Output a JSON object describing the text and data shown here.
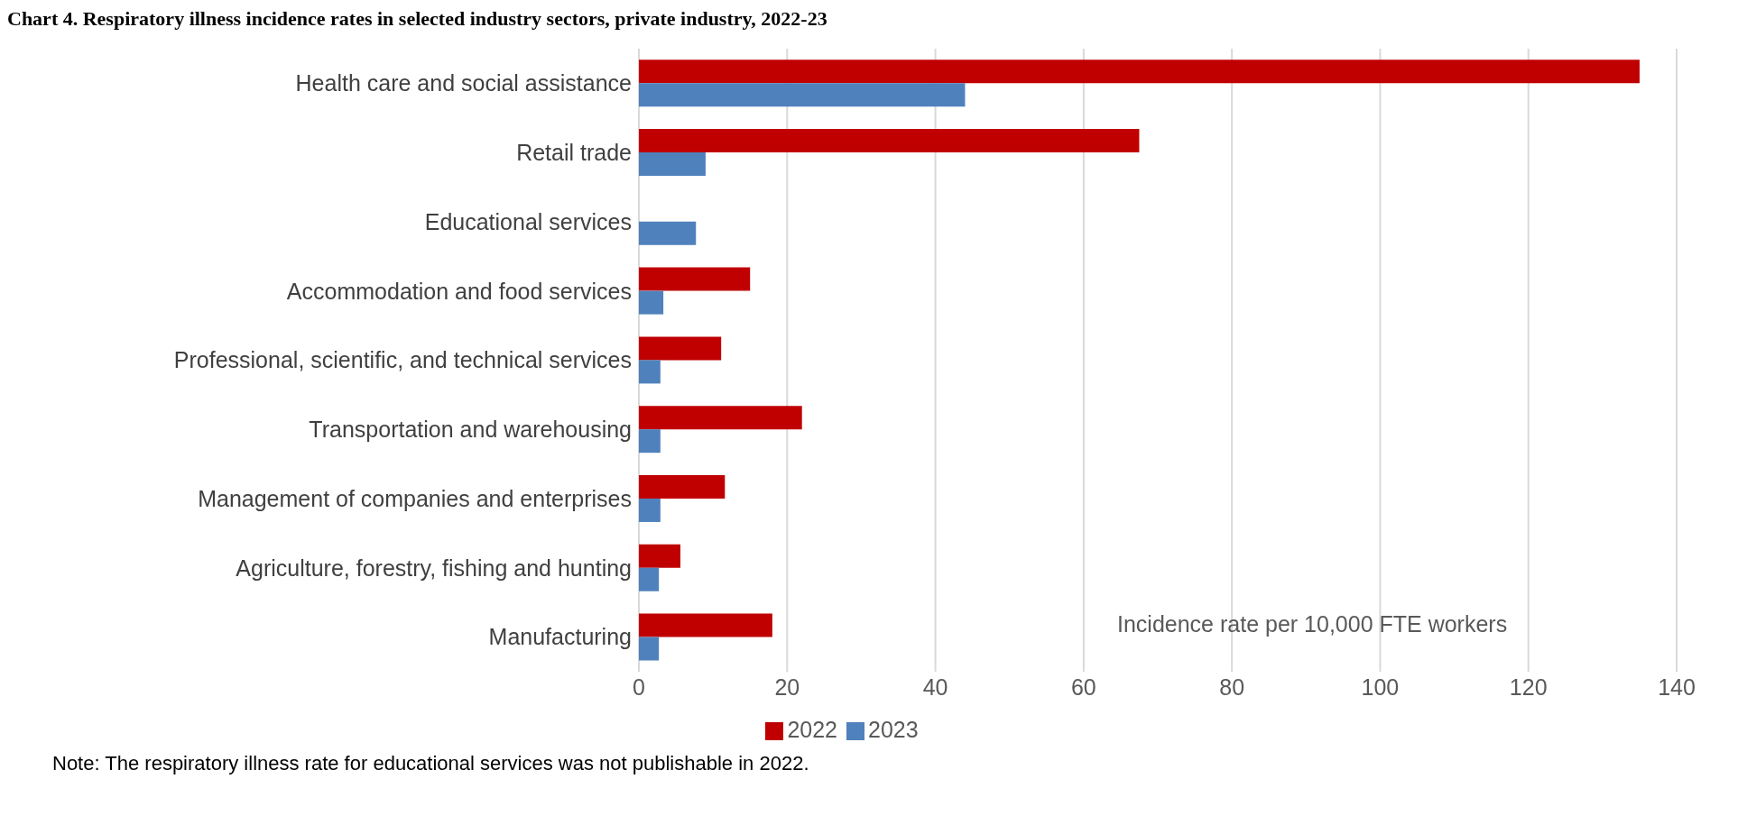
{
  "chart_data": {
    "type": "bar",
    "orientation": "horizontal",
    "title": "Chart 4. Respiratory illness incidence rates in selected industry sectors, private industry, 2022-23",
    "categories": [
      "Health care and social assistance",
      "Retail trade",
      "Educational services",
      "Accommodation and food services",
      "Professional, scientific, and technical services",
      "Transportation and warehousing",
      "Management of companies and enterprises",
      "Agriculture, forestry, fishing and hunting",
      "Manufacturing"
    ],
    "series": [
      {
        "name": "2022",
        "color": "#c00000",
        "values": [
          135,
          67.5,
          null,
          15.0,
          11.1,
          22.0,
          11.6,
          5.6,
          18.0
        ]
      },
      {
        "name": "2023",
        "color": "#4f81bd",
        "values": [
          44,
          9.0,
          7.7,
          3.3,
          2.9,
          2.9,
          2.9,
          2.7,
          2.7
        ]
      }
    ],
    "xlim": [
      0,
      140
    ],
    "xticks": [
      0,
      20,
      40,
      60,
      80,
      100,
      120,
      140
    ],
    "grid": "x",
    "legend": "bottom",
    "annotations": [
      "Incidence rate per 10,000 FTE workers",
      "Note: The respiratory illness rate for educational services was not publishable in 2022."
    ]
  }
}
